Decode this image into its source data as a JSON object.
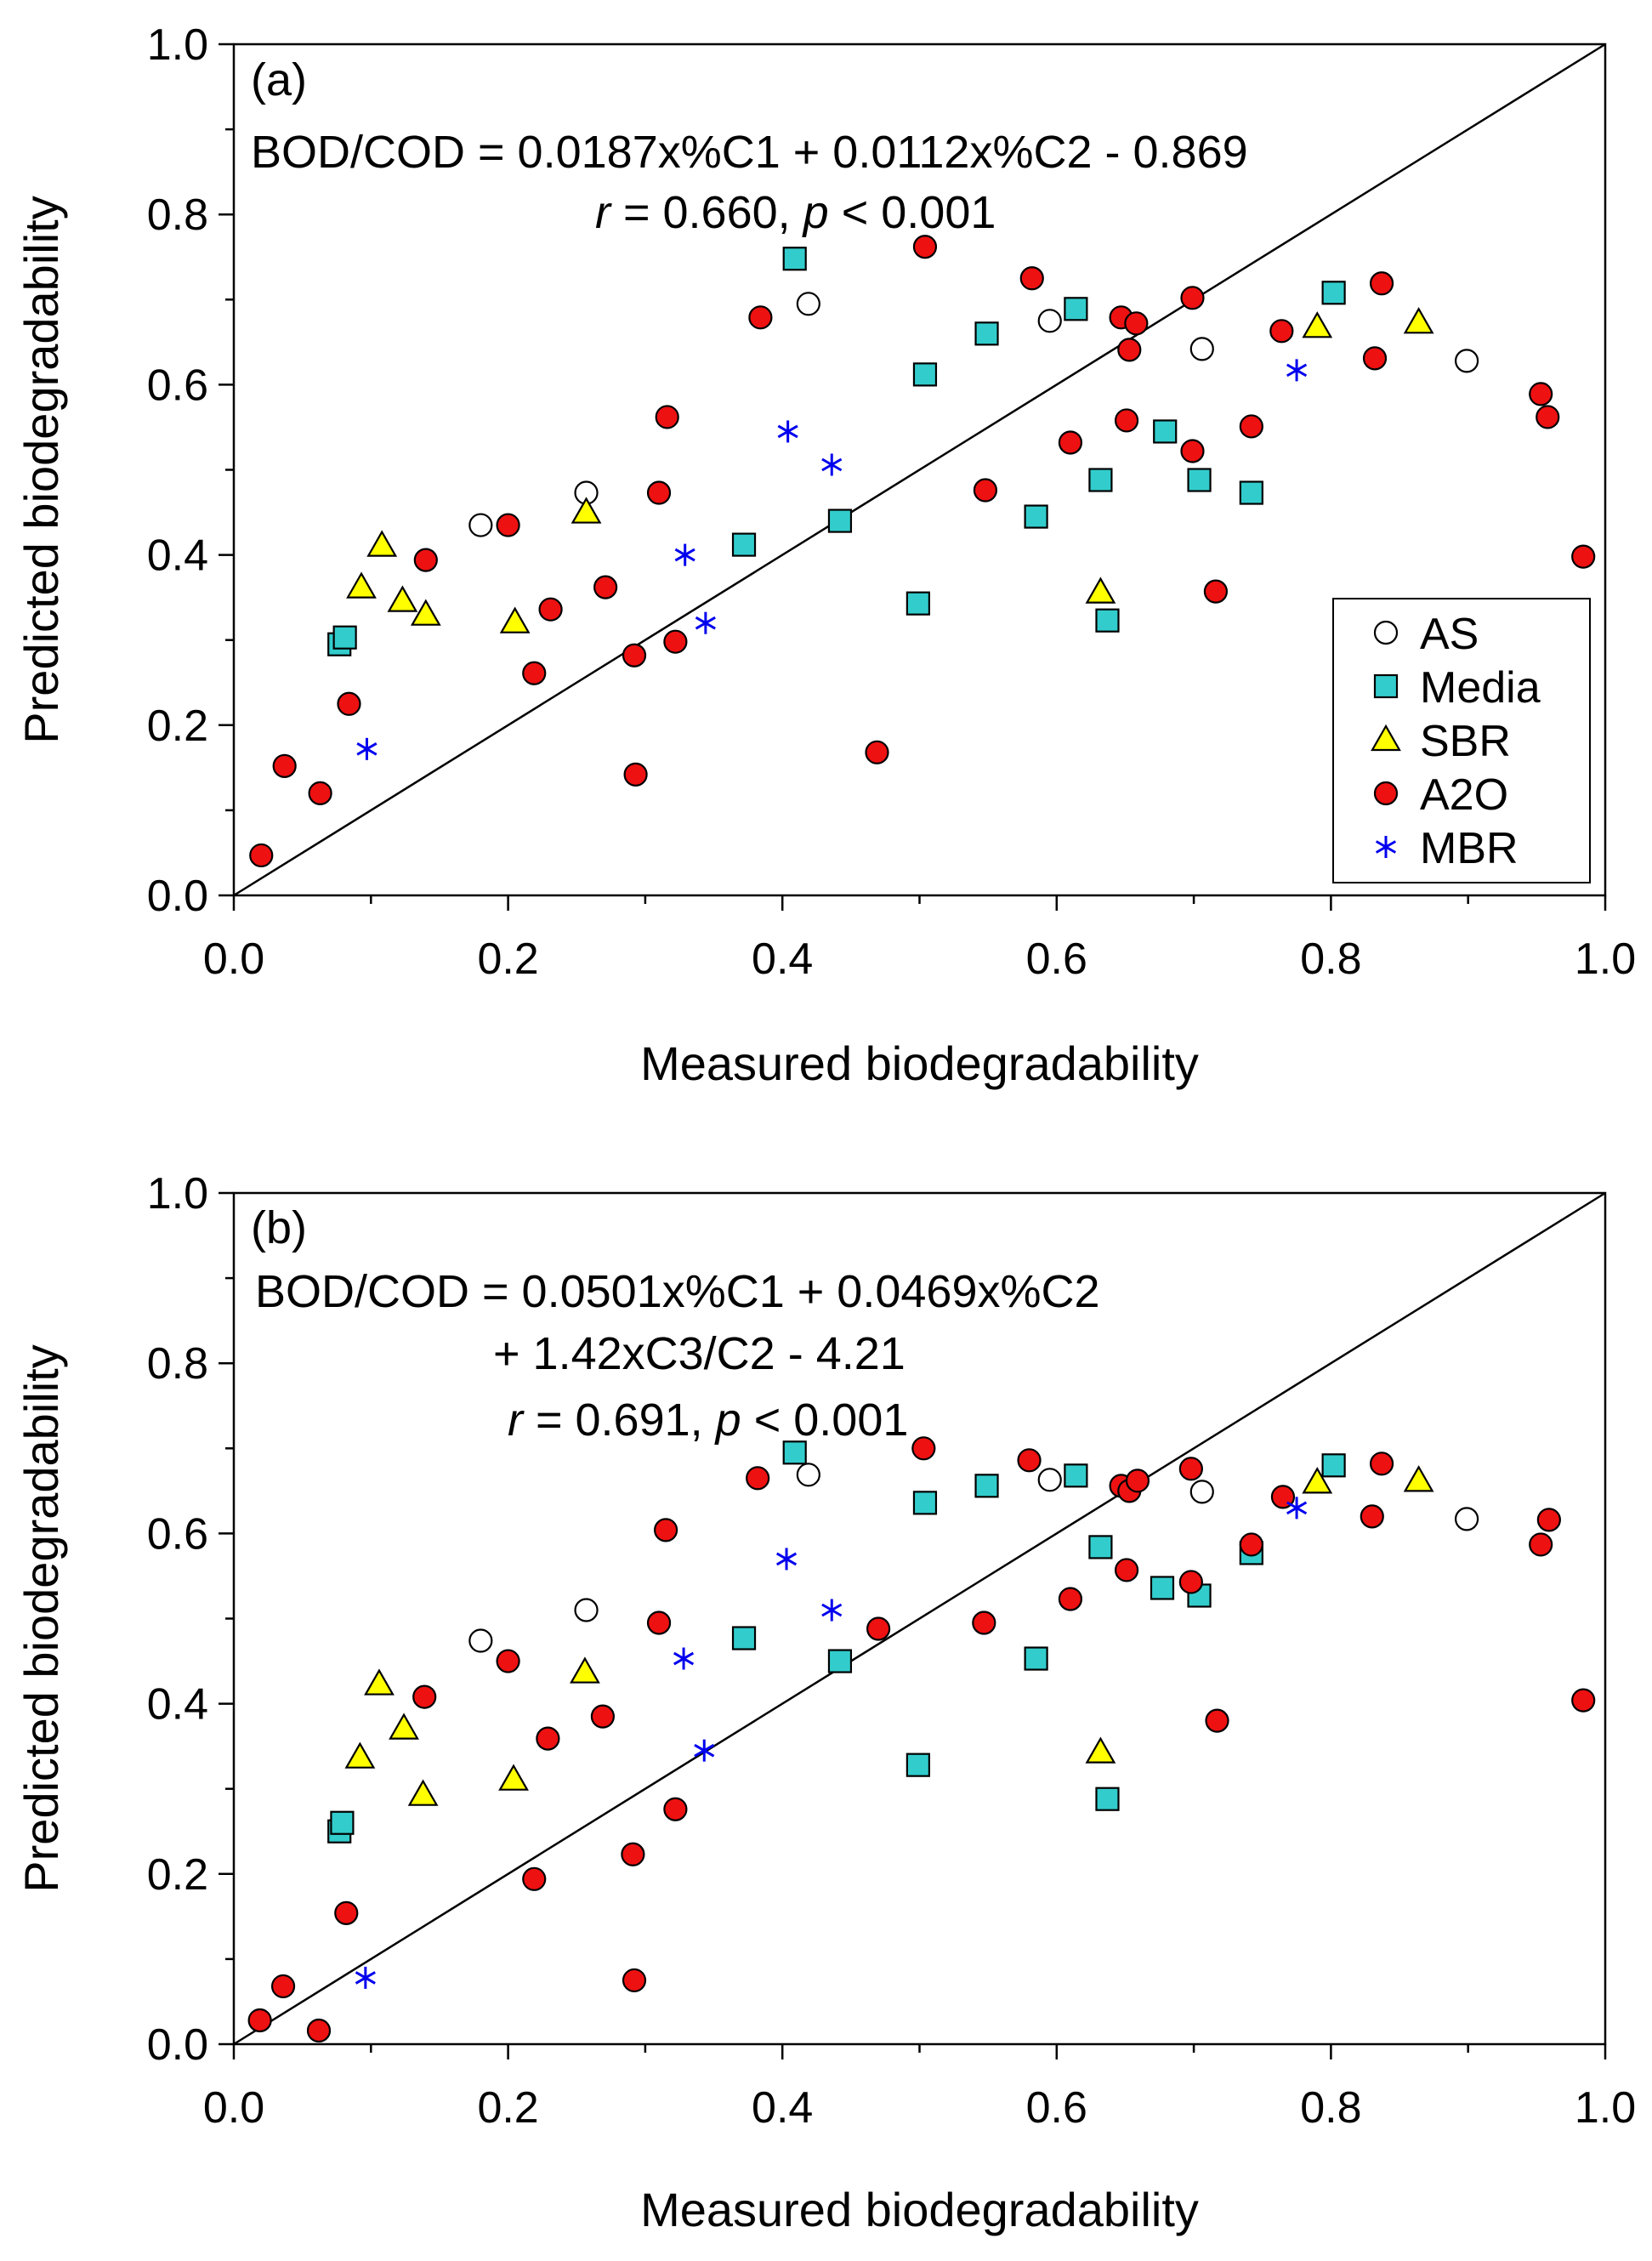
{
  "legend_labels": {
    "AS": "AS",
    "Media": "Media",
    "SBR": "SBR",
    "A2O": "A2O",
    "MBR": "MBR"
  },
  "colors": {
    "AS": "#ffffff",
    "Media": "#33cccc",
    "SBR": "#ffff00",
    "A2O": "#ee1111",
    "MBR": "#0000ee",
    "axis": "#000000"
  },
  "chart_data": [
    {
      "type": "scatter",
      "panel_label": "(a)",
      "equation": "BOD/COD = 0.0187x%C1 + 0.0112x%C2 - 0.869",
      "stat_r": "r",
      "stat_text": " = 0.660, ",
      "stat_p": "p",
      "stat_tail": " < 0.001",
      "xlabel": "Measured biodegradability",
      "ylabel": "Predicted biodegradability",
      "xlim": [
        0,
        1
      ],
      "ylim": [
        0,
        1
      ],
      "xticks": [
        "0.0",
        "0.2",
        "0.4",
        "0.6",
        "0.8",
        "1.0"
      ],
      "yticks": [
        "0.0",
        "0.2",
        "0.4",
        "0.6",
        "0.8",
        "1.0"
      ],
      "grid": false,
      "legend_position": "bottom-right",
      "reference_line": "y = x",
      "series": [
        {
          "name": "AS",
          "marker": "circle-open",
          "points": [
            [
              0.18,
              0.435
            ],
            [
              0.257,
              0.473
            ],
            [
              0.419,
              0.695
            ],
            [
              0.595,
              0.675
            ],
            [
              0.706,
              0.642
            ],
            [
              0.899,
              0.628
            ]
          ]
        },
        {
          "name": "Media",
          "marker": "square",
          "points": [
            [
              0.077,
              0.295
            ],
            [
              0.081,
              0.303
            ],
            [
              0.409,
              0.748
            ],
            [
              0.372,
              0.412
            ],
            [
              0.442,
              0.44
            ],
            [
              0.499,
              0.343
            ],
            [
              0.504,
              0.612
            ],
            [
              0.549,
              0.66
            ],
            [
              0.585,
              0.445
            ],
            [
              0.614,
              0.689
            ],
            [
              0.632,
              0.488
            ],
            [
              0.637,
              0.323
            ],
            [
              0.679,
              0.545
            ],
            [
              0.704,
              0.488
            ],
            [
              0.742,
              0.473
            ],
            [
              0.802,
              0.708
            ]
          ]
        },
        {
          "name": "SBR",
          "marker": "triangle",
          "points": [
            [
              0.093,
              0.362
            ],
            [
              0.108,
              0.411
            ],
            [
              0.123,
              0.346
            ],
            [
              0.14,
              0.33
            ],
            [
              0.205,
              0.321
            ],
            [
              0.257,
              0.45
            ],
            [
              0.632,
              0.356
            ],
            [
              0.79,
              0.668
            ],
            [
              0.864,
              0.673
            ]
          ]
        },
        {
          "name": "A2O",
          "marker": "circle",
          "points": [
            [
              0.02,
              0.047
            ],
            [
              0.037,
              0.152
            ],
            [
              0.063,
              0.12
            ],
            [
              0.084,
              0.225
            ],
            [
              0.14,
              0.394
            ],
            [
              0.2,
              0.435
            ],
            [
              0.219,
              0.261
            ],
            [
              0.231,
              0.336
            ],
            [
              0.271,
              0.362
            ],
            [
              0.292,
              0.282
            ],
            [
              0.293,
              0.142
            ],
            [
              0.31,
              0.473
            ],
            [
              0.316,
              0.562
            ],
            [
              0.322,
              0.298
            ],
            [
              0.384,
              0.679
            ],
            [
              0.469,
              0.168
            ],
            [
              0.504,
              0.762
            ],
            [
              0.548,
              0.476
            ],
            [
              0.582,
              0.725
            ],
            [
              0.61,
              0.532
            ],
            [
              0.647,
              0.679
            ],
            [
              0.651,
              0.558
            ],
            [
              0.653,
              0.641
            ],
            [
              0.658,
              0.672
            ],
            [
              0.699,
              0.702
            ],
            [
              0.699,
              0.522
            ],
            [
              0.716,
              0.357
            ],
            [
              0.742,
              0.551
            ],
            [
              0.764,
              0.663
            ],
            [
              0.832,
              0.631
            ],
            [
              0.837,
              0.719
            ],
            [
              0.953,
              0.589
            ],
            [
              0.958,
              0.562
            ],
            [
              0.984,
              0.398
            ]
          ]
        },
        {
          "name": "MBR",
          "marker": "asterisk",
          "points": [
            [
              0.097,
              0.172
            ],
            [
              0.329,
              0.4
            ],
            [
              0.344,
              0.32
            ],
            [
              0.404,
              0.545
            ],
            [
              0.436,
              0.506
            ],
            [
              0.775,
              0.617
            ]
          ]
        }
      ]
    },
    {
      "type": "scatter",
      "panel_label": "(b)",
      "equation": "BOD/COD = 0.0501x%C1 + 0.0469x%C2",
      "equation_line2": "+ 1.42xC3/C2 - 4.21",
      "stat_r": "r",
      "stat_text": " = 0.691, ",
      "stat_p": "p",
      "stat_tail": " < 0.001",
      "xlabel": "Measured biodegradability",
      "ylabel": "Predicted biodegradability",
      "xlim": [
        0,
        1
      ],
      "ylim": [
        0,
        1
      ],
      "xticks": [
        "0.0",
        "0.2",
        "0.4",
        "0.6",
        "0.8",
        "1.0"
      ],
      "yticks": [
        "0.0",
        "0.2",
        "0.4",
        "0.6",
        "0.8",
        "1.0"
      ],
      "grid": false,
      "reference_line": "y = x",
      "series": [
        {
          "name": "AS",
          "marker": "circle-open",
          "points": [
            [
              0.18,
              0.474
            ],
            [
              0.257,
              0.51
            ],
            [
              0.419,
              0.669
            ],
            [
              0.595,
              0.663
            ],
            [
              0.706,
              0.649
            ],
            [
              0.899,
              0.617
            ]
          ]
        },
        {
          "name": "Media",
          "marker": "square",
          "points": [
            [
              0.077,
              0.25
            ],
            [
              0.079,
              0.26
            ],
            [
              0.409,
              0.695
            ],
            [
              0.372,
              0.477
            ],
            [
              0.442,
              0.45
            ],
            [
              0.499,
              0.328
            ],
            [
              0.504,
              0.636
            ],
            [
              0.549,
              0.656
            ],
            [
              0.585,
              0.453
            ],
            [
              0.614,
              0.668
            ],
            [
              0.632,
              0.584
            ],
            [
              0.637,
              0.288
            ],
            [
              0.677,
              0.536
            ],
            [
              0.704,
              0.527
            ],
            [
              0.742,
              0.577
            ],
            [
              0.802,
              0.68
            ]
          ]
        },
        {
          "name": "SBR",
          "marker": "triangle",
          "points": [
            [
              0.092,
              0.337
            ],
            [
              0.106,
              0.423
            ],
            [
              0.124,
              0.371
            ],
            [
              0.138,
              0.293
            ],
            [
              0.204,
              0.311
            ],
            [
              0.256,
              0.437
            ],
            [
              0.632,
              0.343
            ],
            [
              0.79,
              0.66
            ],
            [
              0.864,
              0.662
            ]
          ]
        },
        {
          "name": "A2O",
          "marker": "circle",
          "points": [
            [
              0.019,
              0.028
            ],
            [
              0.036,
              0.068
            ],
            [
              0.062,
              0.016
            ],
            [
              0.082,
              0.154
            ],
            [
              0.139,
              0.408
            ],
            [
              0.2,
              0.45
            ],
            [
              0.219,
              0.194
            ],
            [
              0.229,
              0.359
            ],
            [
              0.269,
              0.385
            ],
            [
              0.291,
              0.223
            ],
            [
              0.292,
              0.075
            ],
            [
              0.31,
              0.495
            ],
            [
              0.315,
              0.604
            ],
            [
              0.322,
              0.276
            ],
            [
              0.382,
              0.665
            ],
            [
              0.47,
              0.488
            ],
            [
              0.503,
              0.7
            ],
            [
              0.547,
              0.495
            ],
            [
              0.58,
              0.686
            ],
            [
              0.61,
              0.523
            ],
            [
              0.647,
              0.656
            ],
            [
              0.651,
              0.557
            ],
            [
              0.653,
              0.65
            ],
            [
              0.659,
              0.662
            ],
            [
              0.698,
              0.676
            ],
            [
              0.698,
              0.543
            ],
            [
              0.717,
              0.38
            ],
            [
              0.742,
              0.587
            ],
            [
              0.765,
              0.643
            ],
            [
              0.83,
              0.62
            ],
            [
              0.837,
              0.682
            ],
            [
              0.953,
              0.587
            ],
            [
              0.959,
              0.616
            ],
            [
              0.984,
              0.404
            ]
          ]
        },
        {
          "name": "MBR",
          "marker": "asterisk",
          "points": [
            [
              0.096,
              0.078
            ],
            [
              0.328,
              0.453
            ],
            [
              0.343,
              0.345
            ],
            [
              0.403,
              0.57
            ],
            [
              0.436,
              0.51
            ],
            [
              0.775,
              0.63
            ]
          ]
        }
      ]
    }
  ]
}
